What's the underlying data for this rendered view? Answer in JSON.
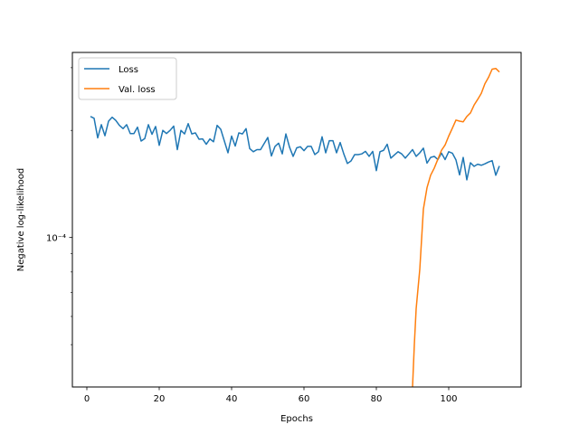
{
  "chart_data": {
    "type": "line",
    "title": "",
    "xlabel": "Epochs",
    "ylabel": "Negative log-likelihood",
    "yscale": "log",
    "xlim": [
      -4,
      120
    ],
    "ylim_log10": [
      -4.42,
      -3.48
    ],
    "xticks": [
      0,
      20,
      40,
      60,
      80,
      100
    ],
    "xtick_labels": [
      "0",
      "20",
      "40",
      "60",
      "80",
      "100"
    ],
    "yticks_log10": [
      -4
    ],
    "ytick_labels": [
      "10⁻⁴"
    ],
    "grid": false,
    "legend_position": "upper-left",
    "series": [
      {
        "name": "Loss",
        "color": "#1f77b4",
        "x": [
          1,
          2,
          3,
          4,
          5,
          6,
          7,
          8,
          9,
          10,
          11,
          12,
          13,
          14,
          15,
          16,
          17,
          18,
          19,
          20,
          21,
          22,
          23,
          24,
          25,
          26,
          27,
          28,
          29,
          30,
          31,
          32,
          33,
          34,
          35,
          36,
          37,
          38,
          39,
          40,
          41,
          42,
          43,
          44,
          45,
          46,
          47,
          48,
          49,
          50,
          51,
          52,
          53,
          54,
          55,
          56,
          57,
          58,
          59,
          60,
          61,
          62,
          63,
          64,
          65,
          66,
          67,
          68,
          69,
          70,
          71,
          72,
          73,
          74,
          75,
          76,
          77,
          78,
          79,
          80,
          81,
          82,
          83,
          84,
          85,
          86,
          87,
          88,
          89,
          90,
          91,
          92,
          93,
          94,
          95,
          96,
          97,
          98,
          99,
          100,
          101,
          102,
          103,
          104,
          105,
          106,
          107,
          108,
          109,
          110,
          111,
          112,
          113,
          114
        ],
        "log10_y": [
          -3.66,
          -3.665,
          -3.72,
          -3.683,
          -3.714,
          -3.673,
          -3.662,
          -3.671,
          -3.685,
          -3.694,
          -3.683,
          -3.708,
          -3.708,
          -3.69,
          -3.729,
          -3.722,
          -3.683,
          -3.71,
          -3.688,
          -3.741,
          -3.699,
          -3.708,
          -3.699,
          -3.687,
          -3.753,
          -3.699,
          -3.709,
          -3.68,
          -3.709,
          -3.706,
          -3.724,
          -3.723,
          -3.738,
          -3.723,
          -3.731,
          -3.685,
          -3.696,
          -3.729,
          -3.762,
          -3.715,
          -3.743,
          -3.706,
          -3.709,
          -3.694,
          -3.75,
          -3.759,
          -3.753,
          -3.753,
          -3.736,
          -3.719,
          -3.771,
          -3.744,
          -3.735,
          -3.765,
          -3.709,
          -3.746,
          -3.772,
          -3.748,
          -3.745,
          -3.756,
          -3.744,
          -3.744,
          -3.767,
          -3.759,
          -3.717,
          -3.762,
          -3.728,
          -3.728,
          -3.762,
          -3.733,
          -3.765,
          -3.792,
          -3.785,
          -3.767,
          -3.767,
          -3.765,
          -3.758,
          -3.772,
          -3.758,
          -3.812,
          -3.759,
          -3.755,
          -3.738,
          -3.777,
          -3.768,
          -3.759,
          -3.765,
          -3.777,
          -3.765,
          -3.753,
          -3.772,
          -3.762,
          -3.749,
          -3.791,
          -3.775,
          -3.772,
          -3.781,
          -3.763,
          -3.781,
          -3.759,
          -3.763,
          -3.782,
          -3.824,
          -3.775,
          -3.838,
          -3.79,
          -3.8,
          -3.794,
          -3.797,
          -3.793,
          -3.788,
          -3.784,
          -3.825,
          -3.799
        ]
      },
      {
        "name": "Val. loss",
        "color": "#ff7f0e",
        "x": [
          90,
          90.5,
          91,
          92,
          93,
          94,
          95,
          96,
          97,
          98,
          99,
          100,
          101,
          102,
          103,
          104,
          105,
          106,
          107,
          108,
          109,
          110,
          111,
          112,
          113,
          114
        ],
        "log10_y": [
          -4.42,
          -4.3,
          -4.2,
          -4.09,
          -3.92,
          -3.86,
          -3.825,
          -3.805,
          -3.78,
          -3.755,
          -3.74,
          -3.715,
          -3.693,
          -3.67,
          -3.673,
          -3.675,
          -3.66,
          -3.65,
          -3.628,
          -3.612,
          -3.595,
          -3.568,
          -3.55,
          -3.527,
          -3.525,
          -3.535
        ]
      }
    ]
  }
}
